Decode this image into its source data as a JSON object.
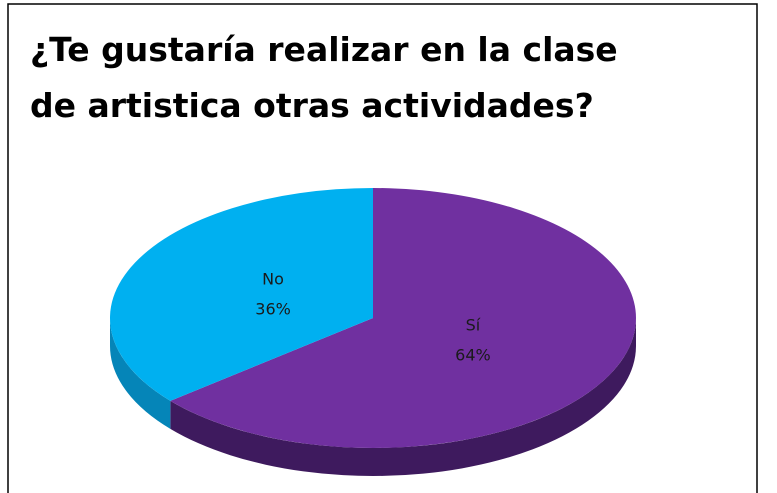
{
  "chart_data": {
    "type": "pie",
    "title": "¿Te gustaría realizar en la clase de artistica otras actividades?",
    "categories": [
      "Sí",
      "No"
    ],
    "values": [
      64,
      36
    ],
    "value_labels": [
      "64%",
      "36%"
    ],
    "colors": [
      "#7030a0",
      "#00b0f0"
    ],
    "side_colors": [
      "#3e1a5e",
      "#0585b8"
    ]
  }
}
